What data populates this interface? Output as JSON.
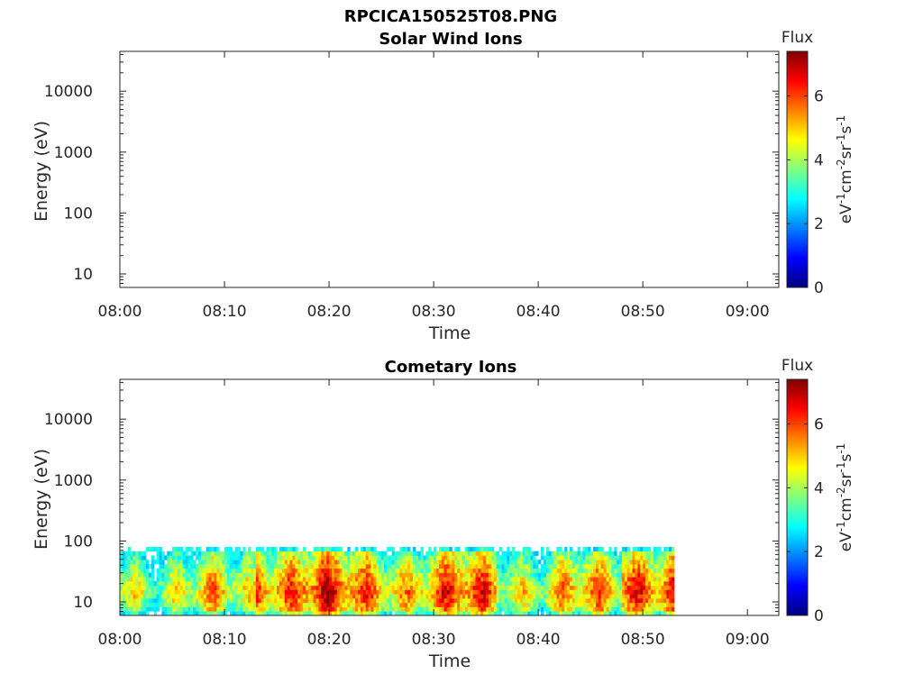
{
  "figure": {
    "title": "RPCICA150525T08.PNG"
  },
  "chart_data": [
    {
      "type": "heatmap",
      "title": "Solar Wind Ions",
      "xlabel": "Time",
      "ylabel": "Energy (eV)",
      "x_ticks": [
        "08:00",
        "08:10",
        "08:20",
        "08:30",
        "08:40",
        "08:50",
        "09:00"
      ],
      "y_ticks": [
        "10",
        "100",
        "1000",
        "10000"
      ],
      "y_scale": "log",
      "ylim": [
        6,
        45000
      ],
      "xlim": [
        "08:00",
        "09:03"
      ],
      "colorbar": {
        "label": "Flux",
        "unit_label": "eV-1 cm-2 sr-1 s-1",
        "ticks": [
          "0",
          "2",
          "4",
          "6"
        ],
        "range": [
          0,
          7.4
        ]
      },
      "data": []
    },
    {
      "type": "heatmap",
      "title": "Cometary Ions",
      "xlabel": "Time",
      "ylabel": "Energy (eV)",
      "x_ticks": [
        "08:00",
        "08:10",
        "08:20",
        "08:30",
        "08:40",
        "08:50",
        "09:00"
      ],
      "y_ticks": [
        "10",
        "100",
        "1000",
        "10000"
      ],
      "y_scale": "log",
      "ylim": [
        6,
        45000
      ],
      "xlim": [
        "08:00",
        "09:03"
      ],
      "colorbar": {
        "label": "Flux",
        "unit_label": "eV-1 cm-2 sr-1 s-1",
        "ticks": [
          "0",
          "2",
          "4",
          "6"
        ],
        "range": [
          0,
          7.4
        ]
      },
      "data": {
        "time_start": "08:00",
        "time_end": "08:53",
        "energy_min_eV": 6,
        "energy_max_eV": 80,
        "segments": [
          {
            "from": "08:00",
            "to": "08:13",
            "mean_flux": 4.6
          },
          {
            "from": "08:13",
            "to": "08:20",
            "mean_flux": 6.2
          },
          {
            "from": "08:20",
            "to": "08:36",
            "mean_flux": 5.6
          },
          {
            "from": "08:36",
            "to": "08:48",
            "mean_flux": 5.0
          },
          {
            "from": "08:48",
            "to": "08:53",
            "mean_flux": 6.4
          }
        ]
      }
    }
  ]
}
